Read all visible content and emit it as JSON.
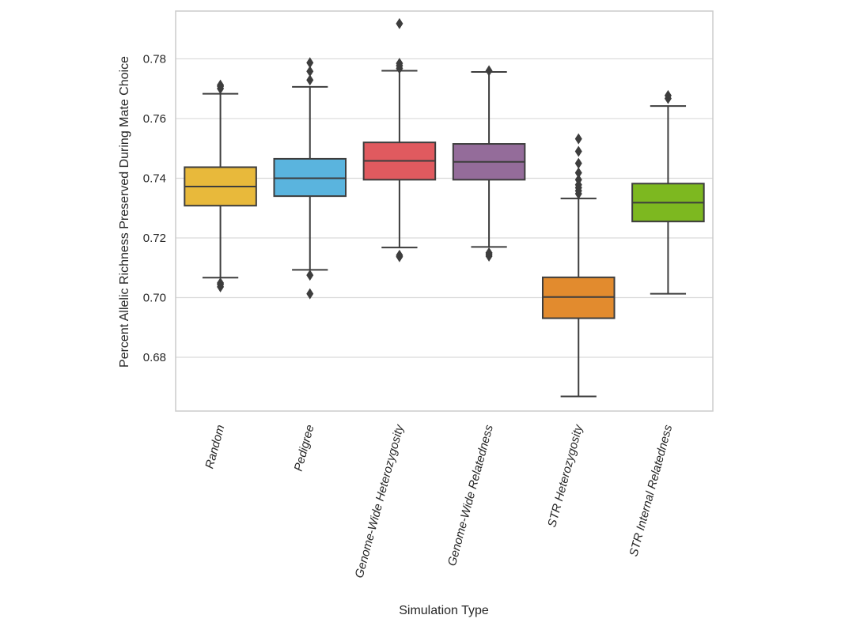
{
  "chart_data": {
    "type": "box",
    "title": "",
    "xlabel": "Simulation Type",
    "ylabel": "Percent Allelic Richness Preserved During Mate Choice",
    "ylim": [
      0.662,
      0.796
    ],
    "yticks": [
      "0.68",
      "0.70",
      "0.72",
      "0.74",
      "0.76",
      "0.78"
    ],
    "grid": true,
    "categories": [
      "Random",
      "Pedigree",
      "Genome-Wide Heterozygosity",
      "Genome-Wide Relatedness",
      "STR Heterozygosity",
      "STR Internal Relatedness"
    ],
    "series": [
      {
        "name": "Random",
        "color": "#E8B93B",
        "whisker_low": 0.7067,
        "q1": 0.7308,
        "median": 0.7372,
        "q3": 0.7437,
        "whisker_high": 0.7683,
        "outliers": [
          0.7036,
          0.7044,
          0.7049,
          0.77,
          0.7708,
          0.7712
        ]
      },
      {
        "name": "Pedigree",
        "color": "#5AB4DE",
        "whisker_low": 0.7093,
        "q1": 0.734,
        "median": 0.74,
        "q3": 0.7465,
        "whisker_high": 0.7706,
        "outliers": [
          0.7013,
          0.7075,
          0.7729,
          0.7758,
          0.7787
        ]
      },
      {
        "name": "Genome-Wide Heterozygosity",
        "color": "#E05A5F",
        "whisker_low": 0.7168,
        "q1": 0.7395,
        "median": 0.7458,
        "q3": 0.752,
        "whisker_high": 0.776,
        "outliers": [
          0.7137,
          0.7142,
          0.7768,
          0.7777,
          0.7785,
          0.7918
        ]
      },
      {
        "name": "Genome-Wide Relatedness",
        "color": "#946C9A",
        "whisker_low": 0.717,
        "q1": 0.7395,
        "median": 0.7455,
        "q3": 0.7515,
        "whisker_high": 0.7756,
        "outliers": [
          0.7139,
          0.7145,
          0.715,
          0.776
        ]
      },
      {
        "name": "STR Heterozygosity",
        "color": "#E28B2E",
        "whisker_low": 0.6669,
        "q1": 0.6931,
        "median": 0.7002,
        "q3": 0.7068,
        "whisker_high": 0.7332,
        "outliers": [
          0.7348,
          0.7358,
          0.7368,
          0.7378,
          0.7395,
          0.7418,
          0.745,
          0.749,
          0.7532
        ]
      },
      {
        "name": "STR Internal Relatedness",
        "color": "#7DB820",
        "whisker_low": 0.7013,
        "q1": 0.7255,
        "median": 0.7318,
        "q3": 0.7382,
        "whisker_high": 0.7642,
        "outliers": [
          0.7667,
          0.7677
        ]
      }
    ]
  }
}
